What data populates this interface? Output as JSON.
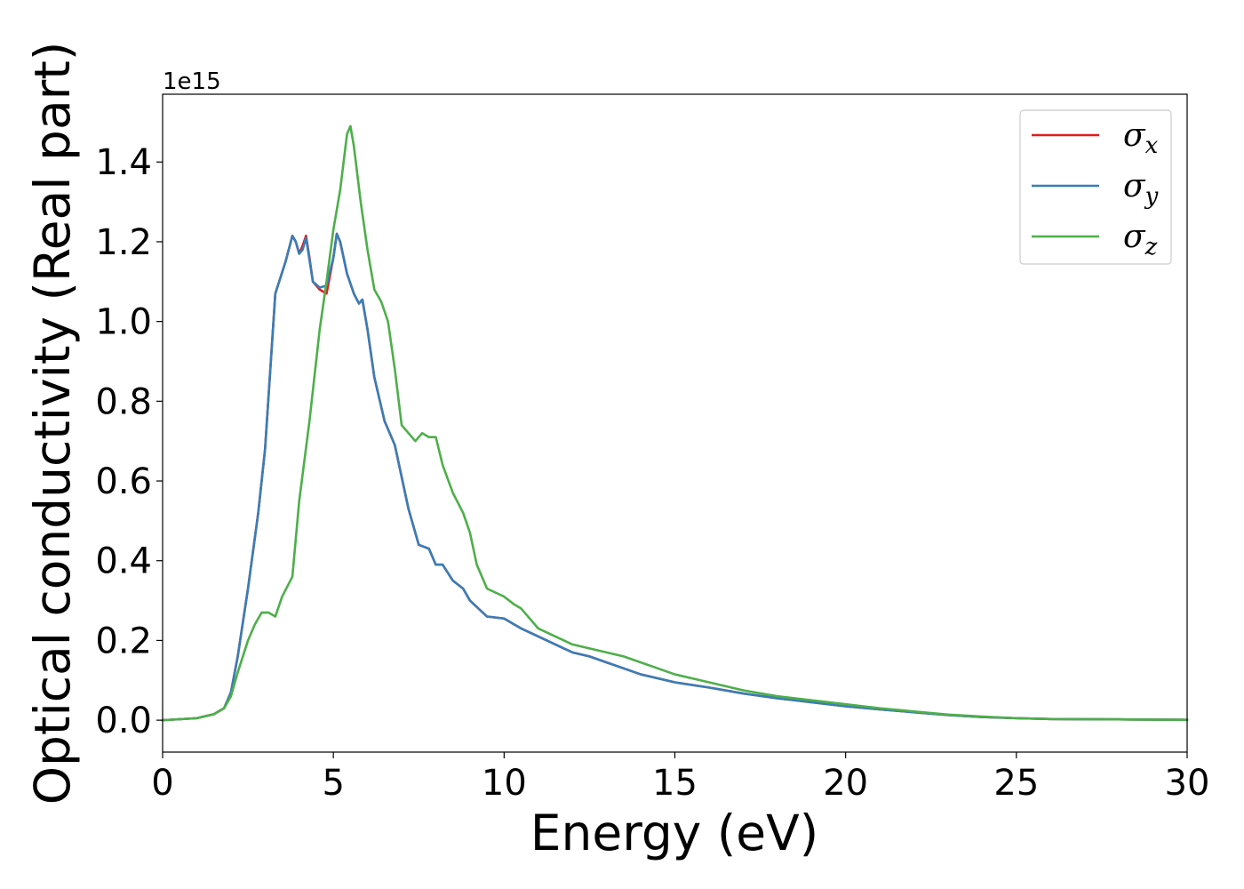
{
  "chart_data": {
    "type": "line",
    "xlabel": "Energy (eV)",
    "ylabel": "Optical conductivity (Real part)",
    "y_offset_text": "1e15",
    "xlim": [
      0,
      30
    ],
    "ylim": [
      -0.08,
      1.57
    ],
    "x_ticks": [
      0,
      5,
      10,
      15,
      20,
      25,
      30
    ],
    "x_tick_labels": [
      "0",
      "5",
      "10",
      "15",
      "20",
      "25",
      "30"
    ],
    "y_ticks": [
      0.0,
      0.2,
      0.4,
      0.6,
      0.8,
      1.0,
      1.2,
      1.4
    ],
    "y_tick_labels": [
      "0.0",
      "0.2",
      "0.4",
      "0.6",
      "0.8",
      "1.0",
      "1.2",
      "1.4"
    ],
    "grid": false,
    "legend_position": "top-right",
    "series": [
      {
        "name": "σ",
        "subscript": "x",
        "color": "#e41a1c",
        "x": [
          0,
          1,
          1.5,
          1.8,
          2.0,
          2.2,
          2.5,
          2.8,
          3.0,
          3.3,
          3.6,
          3.8,
          3.9,
          4.0,
          4.1,
          4.2,
          4.3,
          4.4,
          4.6,
          4.8,
          5.0,
          5.1,
          5.2,
          5.4,
          5.6,
          5.75,
          5.85,
          6.0,
          6.2,
          6.5,
          6.8,
          7.0,
          7.2,
          7.5,
          7.8,
          8.0,
          8.2,
          8.5,
          8.8,
          9.0,
          9.5,
          10.0,
          10.5,
          11.0,
          11.5,
          12.0,
          12.5,
          13.0,
          13.5,
          14.0,
          15.0,
          16.0,
          17.0,
          18.0,
          19.0,
          20.0,
          21.0,
          22.0,
          23.0,
          24.0,
          25.0,
          26.0,
          28.0,
          30.0
        ],
        "y": [
          0.0,
          0.005,
          0.015,
          0.03,
          0.07,
          0.16,
          0.33,
          0.52,
          0.68,
          1.07,
          1.15,
          1.215,
          1.2,
          1.17,
          1.19,
          1.215,
          1.16,
          1.1,
          1.08,
          1.07,
          1.16,
          1.22,
          1.2,
          1.12,
          1.07,
          1.045,
          1.055,
          0.98,
          0.86,
          0.75,
          0.69,
          0.61,
          0.53,
          0.44,
          0.43,
          0.39,
          0.39,
          0.35,
          0.33,
          0.3,
          0.26,
          0.255,
          0.23,
          0.21,
          0.19,
          0.17,
          0.16,
          0.145,
          0.13,
          0.115,
          0.095,
          0.082,
          0.067,
          0.055,
          0.045,
          0.035,
          0.027,
          0.02,
          0.013,
          0.008,
          0.005,
          0.003,
          0.002,
          0.001
        ]
      },
      {
        "name": "σ",
        "subscript": "y",
        "color": "#377eb8",
        "x": [
          0,
          1,
          1.5,
          1.8,
          2.0,
          2.2,
          2.5,
          2.8,
          3.0,
          3.3,
          3.6,
          3.8,
          3.9,
          4.0,
          4.1,
          4.2,
          4.3,
          4.4,
          4.6,
          4.8,
          5.0,
          5.1,
          5.2,
          5.4,
          5.6,
          5.75,
          5.85,
          6.0,
          6.2,
          6.5,
          6.8,
          7.0,
          7.2,
          7.5,
          7.8,
          8.0,
          8.2,
          8.5,
          8.8,
          9.0,
          9.5,
          10.0,
          10.5,
          11.0,
          11.5,
          12.0,
          12.5,
          13.0,
          13.5,
          14.0,
          15.0,
          16.0,
          17.0,
          18.0,
          19.0,
          20.0,
          21.0,
          22.0,
          23.0,
          24.0,
          25.0,
          26.0,
          28.0,
          30.0
        ],
        "y": [
          0.0,
          0.005,
          0.015,
          0.03,
          0.07,
          0.16,
          0.33,
          0.52,
          0.68,
          1.07,
          1.15,
          1.215,
          1.2,
          1.17,
          1.18,
          1.21,
          1.155,
          1.1,
          1.085,
          1.09,
          1.16,
          1.22,
          1.2,
          1.12,
          1.07,
          1.045,
          1.055,
          0.98,
          0.86,
          0.75,
          0.69,
          0.61,
          0.53,
          0.44,
          0.43,
          0.39,
          0.39,
          0.35,
          0.33,
          0.3,
          0.26,
          0.255,
          0.23,
          0.21,
          0.19,
          0.17,
          0.16,
          0.145,
          0.13,
          0.115,
          0.095,
          0.082,
          0.067,
          0.055,
          0.045,
          0.035,
          0.027,
          0.02,
          0.013,
          0.008,
          0.005,
          0.003,
          0.002,
          0.001
        ]
      },
      {
        "name": "σ",
        "subscript": "z",
        "color": "#4daf4a",
        "x": [
          0,
          1,
          1.5,
          1.8,
          2.0,
          2.2,
          2.5,
          2.7,
          2.9,
          3.1,
          3.3,
          3.5,
          3.8,
          4.0,
          4.3,
          4.6,
          4.8,
          5.0,
          5.2,
          5.4,
          5.5,
          5.6,
          5.8,
          6.0,
          6.2,
          6.4,
          6.6,
          6.8,
          7.0,
          7.2,
          7.4,
          7.6,
          7.8,
          8.0,
          8.2,
          8.5,
          8.8,
          9.0,
          9.2,
          9.5,
          10.0,
          10.3,
          10.5,
          11.0,
          11.5,
          12.0,
          12.5,
          13.0,
          13.5,
          14.0,
          14.5,
          15.0,
          16.0,
          17.0,
          18.0,
          19.0,
          20.0,
          21.0,
          22.0,
          23.0,
          24.0,
          25.0,
          26.0,
          28.0,
          30.0
        ],
        "y": [
          0.0,
          0.005,
          0.015,
          0.03,
          0.06,
          0.12,
          0.2,
          0.24,
          0.27,
          0.27,
          0.26,
          0.31,
          0.36,
          0.55,
          0.75,
          0.98,
          1.1,
          1.23,
          1.33,
          1.47,
          1.49,
          1.44,
          1.3,
          1.18,
          1.08,
          1.05,
          1.0,
          0.88,
          0.74,
          0.72,
          0.7,
          0.72,
          0.71,
          0.71,
          0.64,
          0.57,
          0.52,
          0.47,
          0.39,
          0.33,
          0.31,
          0.29,
          0.28,
          0.23,
          0.21,
          0.19,
          0.18,
          0.17,
          0.16,
          0.145,
          0.13,
          0.115,
          0.095,
          0.075,
          0.06,
          0.05,
          0.04,
          0.03,
          0.022,
          0.014,
          0.009,
          0.005,
          0.003,
          0.002,
          0.001
        ]
      }
    ]
  }
}
